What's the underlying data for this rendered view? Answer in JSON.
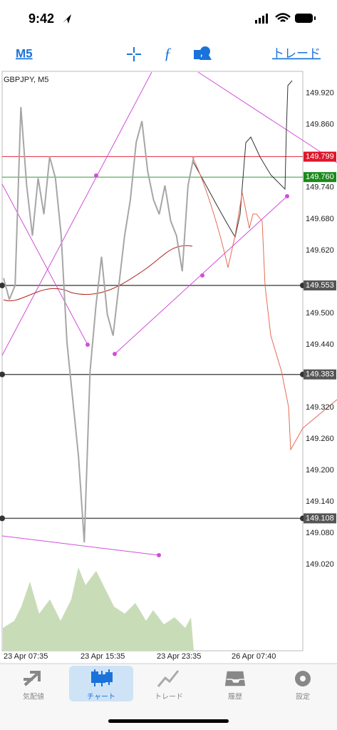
{
  "status_bar": {
    "time": "9:42"
  },
  "toolbar": {
    "timeframe": "M5",
    "trade": "トレード"
  },
  "chart_data": {
    "type": "line",
    "title": "GBPJPY, M5",
    "x_labels": [
      "23 Apr 07:35",
      "23 Apr 15:35",
      "23 Apr 23:35",
      "26 Apr 07:40"
    ],
    "series": [
      {
        "color": "#a6a6a6",
        "values": [
          149.567,
          149.526,
          149.553,
          149.894,
          149.744,
          149.648,
          149.758,
          149.689,
          149.799,
          149.758,
          149.648,
          149.444,
          149.335,
          149.226,
          149.062,
          149.389,
          149.512,
          149.608,
          149.498,
          149.457,
          149.553,
          149.648,
          149.717,
          149.826,
          149.867,
          149.771,
          149.717,
          149.689,
          149.744,
          149.676,
          149.648,
          149.58,
          149.744,
          149.799
        ]
      }
    ],
    "ylim": [
      148.855,
      149.962
    ],
    "yticks": [
      {
        "value": 149.92,
        "label": "149.920"
      },
      {
        "value": 149.86,
        "label": "149.860"
      },
      {
        "value": 149.74,
        "label": "149.740"
      },
      {
        "value": 149.68,
        "label": "149.680"
      },
      {
        "value": 149.62,
        "label": "149.620"
      },
      {
        "value": 149.5,
        "label": "149.500"
      },
      {
        "value": 149.44,
        "label": "149.440"
      },
      {
        "value": 149.32,
        "label": "149.320"
      },
      {
        "value": 149.26,
        "label": "149.260"
      },
      {
        "value": 149.2,
        "label": "149.200"
      },
      {
        "value": 149.14,
        "label": "149.140"
      },
      {
        "value": 149.08,
        "label": "149.080"
      },
      {
        "value": 149.02,
        "label": "149.020"
      }
    ],
    "price_lines": [
      {
        "value": 149.799,
        "color": "#e0162b"
      },
      {
        "value": 149.76,
        "label": "149.760",
        "color": "#1a8a1a"
      },
      {
        "value": 149.553,
        "color": "#555555"
      },
      {
        "value": 149.383,
        "color": "#555555"
      },
      {
        "value": 149.108,
        "color": "#555555"
      }
    ]
  },
  "tab_bar": {
    "tabs": [
      "気配値",
      "チャート",
      "トレード",
      "履歴",
      "設定"
    ]
  }
}
